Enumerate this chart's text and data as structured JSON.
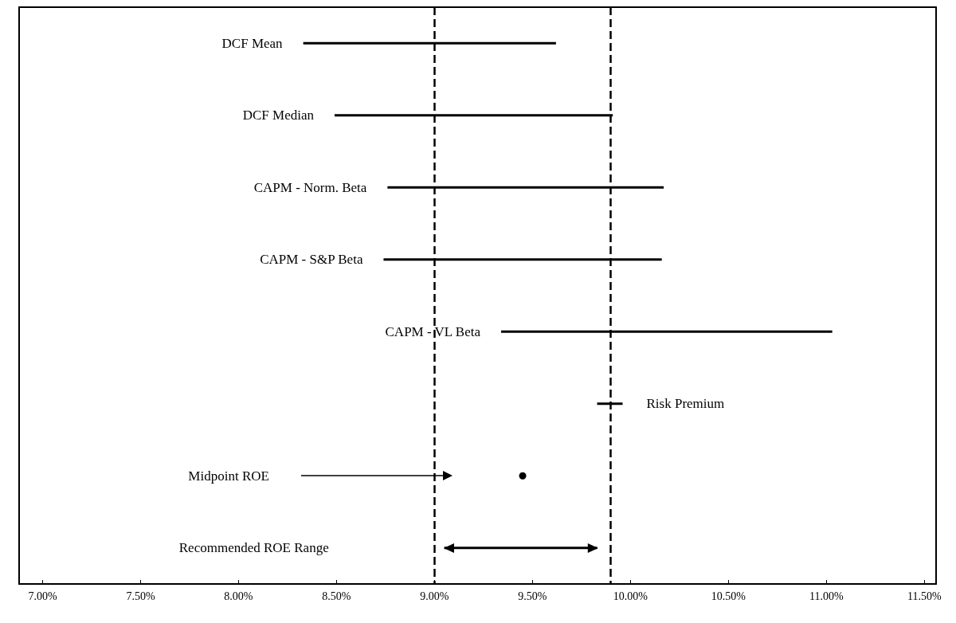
{
  "chart_data": {
    "type": "bar",
    "orientation": "horizontal",
    "categories": [
      "DCF Mean",
      "DCF Median",
      "CAPM - Norm. Beta",
      "CAPM - S&P Beta",
      "CAPM - VL Beta",
      "Risk Premium",
      "Midpoint ROE",
      "Recommended ROE Range"
    ],
    "series": [
      {
        "color": "#000000",
        "base": [
          8.33,
          8.49,
          8.76,
          8.74,
          9.34,
          9.83,
          null,
          9.05
        ],
        "values": [
          1.29,
          1.42,
          1.41,
          1.42,
          1.69,
          0.13,
          null,
          0.78
        ]
      },
      {
        "type": "scatter",
        "color": "#000000",
        "values": [
          null,
          null,
          null,
          null,
          null,
          null,
          9.45,
          null
        ]
      }
    ],
    "xlim": [
      6.88,
      11.56
    ],
    "xticks": [
      {
        "value": 7,
        "label": "7.00%"
      },
      {
        "value": 7.5,
        "label": "7.50%"
      },
      {
        "value": 8,
        "label": "8.00%"
      },
      {
        "value": 8.5,
        "label": "8.50%"
      },
      {
        "value": 9,
        "label": "9.00%"
      },
      {
        "value": 9.5,
        "label": "9.50%"
      },
      {
        "value": 10,
        "label": "10.00%"
      },
      {
        "value": 10.5,
        "label": "10.50%"
      },
      {
        "value": 11,
        "label": "11.00%"
      },
      {
        "value": 11.5,
        "label": "11.50%"
      }
    ],
    "ref_lines": [
      {
        "axis": "x",
        "value": 9.0,
        "line_style": "dashed",
        "color": "#000000"
      },
      {
        "axis": "x",
        "value": 9.9,
        "line_style": "dashed",
        "color": "#000000"
      }
    ],
    "grid": false,
    "tick_labels": "x",
    "marker": "circle"
  }
}
